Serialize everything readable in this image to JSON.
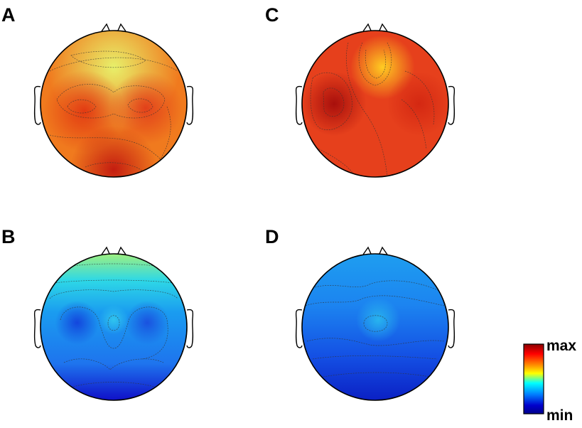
{
  "panels": [
    {
      "label": "A",
      "palette": "warm"
    },
    {
      "label": "B",
      "palette": "cool"
    },
    {
      "label": "C",
      "palette": "warm"
    },
    {
      "label": "D",
      "palette": "cool"
    }
  ],
  "colorbar": {
    "max_label": "max",
    "min_label": "min",
    "stops": [
      "#8b0000",
      "#ff0000",
      "#ff8c00",
      "#ffff00",
      "#00ffff",
      "#0080ff",
      "#0000cc",
      "#00008b"
    ]
  }
}
